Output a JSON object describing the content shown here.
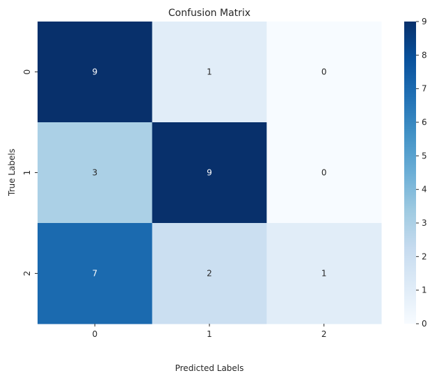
{
  "chart_data": {
    "type": "heatmap",
    "title": "Confusion Matrix",
    "xlabel": "Predicted Labels",
    "ylabel": "True Labels",
    "x_categories": [
      "0",
      "1",
      "2"
    ],
    "y_categories": [
      "0",
      "1",
      "2"
    ],
    "values": [
      [
        9,
        1,
        0
      ],
      [
        3,
        9,
        0
      ],
      [
        7,
        2,
        1
      ]
    ],
    "colormap": "Blues",
    "vmin": 0,
    "vmax": 9,
    "colorbar_ticks": [
      "0",
      "1",
      "2",
      "3",
      "4",
      "5",
      "6",
      "7",
      "8",
      "9"
    ],
    "annotated": true,
    "grid": false
  }
}
